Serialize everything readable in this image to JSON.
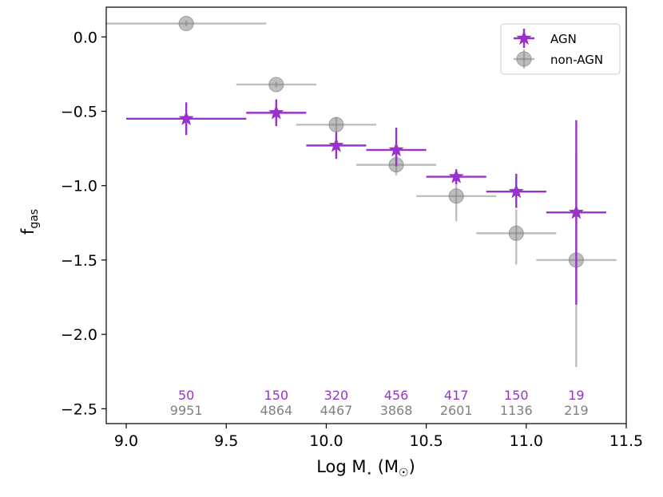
{
  "chart_data": {
    "type": "scatter",
    "title": "",
    "xlabel": "Log M",
    "xlabel_star": "⋆",
    "xlabel_unit_open": " (M",
    "xlabel_unit_sun": "☉",
    "xlabel_unit_close": ")",
    "ylabel": "f",
    "ylabel_sub": "gas",
    "xlim": [
      8.9,
      11.5
    ],
    "ylim": [
      -2.6,
      0.2
    ],
    "xticks": [
      "9.0",
      "9.5",
      "10.0",
      "10.5",
      "11.0",
      "11.5"
    ],
    "yticks": [
      "0.0",
      "−0.5",
      "−1.0",
      "−1.5",
      "−2.0",
      "−2.5"
    ],
    "series": [
      {
        "name": "AGN",
        "color": "#9932CC",
        "marker": "star",
        "x": [
          9.3,
          9.75,
          10.05,
          10.35,
          10.65,
          10.95,
          11.25
        ],
        "xerr_low": [
          0.3,
          0.15,
          0.15,
          0.15,
          0.15,
          0.15,
          0.15
        ],
        "xerr_high": [
          0.3,
          0.15,
          0.15,
          0.15,
          0.15,
          0.15,
          0.15
        ],
        "y": [
          -0.55,
          -0.51,
          -0.73,
          -0.76,
          -0.94,
          -1.04,
          -1.18
        ],
        "yerr_low": [
          0.11,
          0.09,
          0.09,
          0.11,
          0.05,
          0.11,
          0.62
        ],
        "yerr_high": [
          0.11,
          0.09,
          0.09,
          0.15,
          0.05,
          0.12,
          0.62
        ],
        "counts": [
          "50",
          "150",
          "320",
          "456",
          "417",
          "150",
          "19"
        ]
      },
      {
        "name": "non-AGN",
        "color": "#808080",
        "marker": "circle",
        "x": [
          9.3,
          9.75,
          10.05,
          10.35,
          10.65,
          10.95,
          11.25
        ],
        "xerr_low": [
          0.4,
          0.2,
          0.2,
          0.2,
          0.2,
          0.2,
          0.2
        ],
        "xerr_high": [
          0.4,
          0.2,
          0.2,
          0.2,
          0.2,
          0.2,
          0.2
        ],
        "y": [
          0.09,
          -0.32,
          -0.59,
          -0.86,
          -1.07,
          -1.32,
          -1.5
        ],
        "yerr_low": [
          0.02,
          0.02,
          0.05,
          0.07,
          0.17,
          0.21,
          0.72
        ],
        "yerr_high": [
          0.02,
          0.02,
          0.05,
          0.07,
          0.09,
          0.16,
          0.72
        ],
        "counts": [
          "9951",
          "4864",
          "4467",
          "3868",
          "2601",
          "1136",
          "219"
        ]
      }
    ],
    "legend": {
      "position": "top-right",
      "entries": [
        "AGN",
        "non-AGN"
      ]
    }
  }
}
